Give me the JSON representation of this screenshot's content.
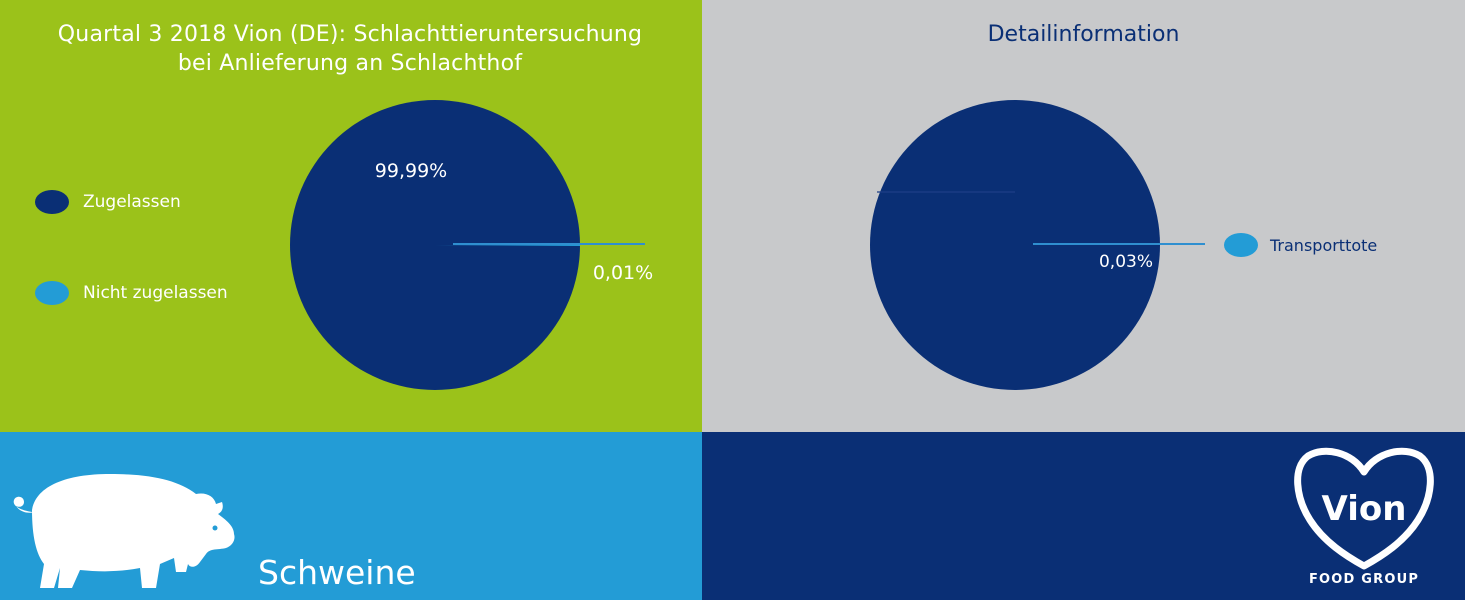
{
  "colors": {
    "green": "#9bc21a",
    "grey": "#c8c9cb",
    "light_blue": "#239cd6",
    "navy": "#0a2f75",
    "slice_small": "#2a9ad6"
  },
  "left_panel": {
    "title_line1": "Quartal 3 2018 Vion (DE): Schlachttieruntersuchung",
    "title_line2": "bei Anlieferung an Schlachthof"
  },
  "right_panel": {
    "title": "Detailinformation"
  },
  "chart_data": [
    {
      "type": "pie",
      "title": "Quartal 3 2018 Vion (DE): Schlachttieruntersuchung bei Anlieferung an Schlachthof",
      "categories": [
        "Zugelassen",
        "Nicht zugelassen"
      ],
      "values": [
        99.99,
        0.01
      ],
      "data_labels": [
        "99,99%",
        "0,01%"
      ],
      "colors": [
        "#0a2f75",
        "#239cd6"
      ],
      "legend_position": "left"
    },
    {
      "type": "pie",
      "title": "Detailinformation",
      "categories": [
        "Transporttote"
      ],
      "values": [
        0.03
      ],
      "data_labels": [
        "0,03%"
      ],
      "colors": [
        "#239cd6"
      ],
      "legend_position": "right"
    }
  ],
  "footer": {
    "animal_label": "Schweine",
    "logo_text": "Vion",
    "logo_subtext": "FOOD GROUP"
  },
  "icons": {
    "animal": "pig-icon",
    "logo": "vion-heart-logo-icon"
  }
}
